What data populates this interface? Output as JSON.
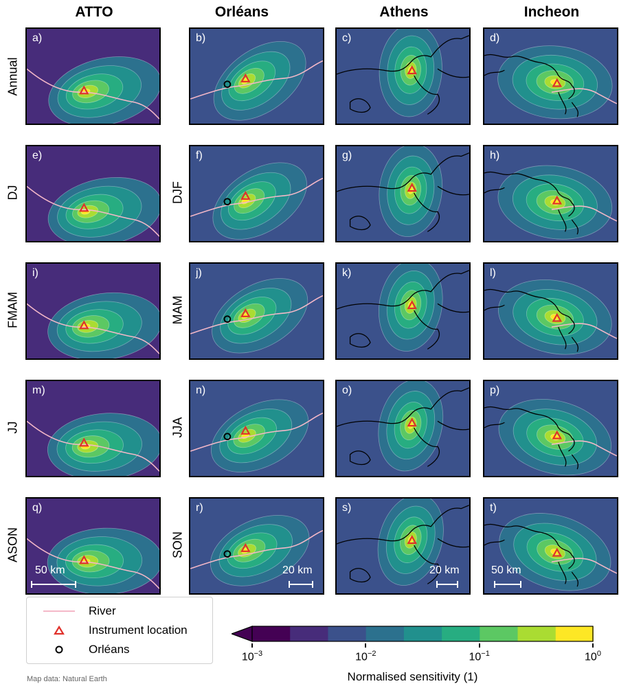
{
  "columns": [
    "ATTO",
    "Orléans",
    "Athens",
    "Incheon"
  ],
  "left_row_labels": [
    "Annual",
    "DJ",
    "FMAM",
    "JJ",
    "ASON"
  ],
  "orleans_row_labels": [
    "DJF",
    "MAM",
    "JJA",
    "SON"
  ],
  "panel_labels": [
    "a)",
    "b)",
    "c)",
    "d)",
    "e)",
    "f)",
    "g)",
    "h)",
    "i)",
    "j)",
    "k)",
    "l)",
    "m)",
    "n)",
    "o)",
    "p)",
    "q)",
    "r)",
    "s)",
    "t)"
  ],
  "scale_bars": {
    "atto": "50 km",
    "orleans": "20 km",
    "athens": "20 km",
    "incheon": "50 km"
  },
  "legend": {
    "river": "River",
    "instrument": "Instrument location",
    "orleans": "Orléans"
  },
  "colorbar": {
    "label": "Normalised sensitivity (1)",
    "ticks": [
      {
        "base": "10",
        "exp": "−3"
      },
      {
        "base": "10",
        "exp": "−2"
      },
      {
        "base": "10",
        "exp": "−1"
      },
      {
        "base": "10",
        "exp": "0"
      }
    ],
    "colors": [
      "#440154",
      "#472c7a",
      "#3b518b",
      "#2c718e",
      "#21908d",
      "#27ad81",
      "#5cc863",
      "#aadc32",
      "#fde725"
    ],
    "scale": "log",
    "range": [
      0.001,
      1
    ]
  },
  "source": "Map data: Natural Earth",
  "chart_data": {
    "type": "heatmap",
    "description_layout": "4 columns (sites) x 5 rows (periods) of footprint sensitivity maps",
    "colorscale": "viridis",
    "vmin": 0.001,
    "vmax": 1,
    "grid": false
  }
}
